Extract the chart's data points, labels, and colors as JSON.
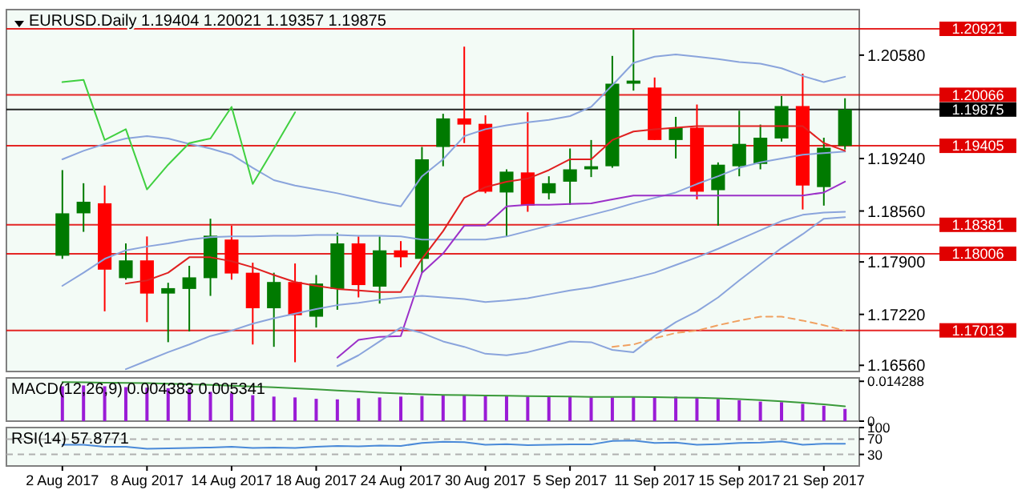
{
  "chart_data": [
    {
      "type": "candlestick",
      "title": "EURUSD.Daily 1.19404 1.20021 1.19357 1.19875",
      "tick_labels": "y",
      "categories": [
        null,
        null,
        null,
        null,
        null,
        null,
        null,
        null,
        null,
        null,
        null,
        null,
        null,
        null,
        null,
        null,
        null,
        null,
        null,
        null,
        null,
        null,
        null,
        null,
        null,
        null,
        null,
        null,
        null,
        null,
        null,
        null,
        null,
        null,
        null,
        null,
        null,
        null
      ],
      "ohlc": [
        [
          1.1798,
          1.1909,
          1.1794,
          1.1853
        ],
        [
          1.1853,
          1.1892,
          1.1829,
          1.1868
        ],
        [
          1.1866,
          1.1889,
          1.1726,
          1.178
        ],
        [
          1.1769,
          1.1814,
          1.1767,
          1.1792
        ],
        [
          1.1792,
          1.1823,
          1.1712,
          1.1749
        ],
        [
          1.1749,
          1.1763,
          1.1686,
          1.1756
        ],
        [
          1.1755,
          1.1785,
          1.17,
          1.177
        ],
        [
          1.1769,
          1.1846,
          1.1746,
          1.1824
        ],
        [
          1.1819,
          1.1837,
          1.1767,
          1.1775
        ],
        [
          1.1776,
          1.1789,
          1.1683,
          1.173
        ],
        [
          1.173,
          1.1776,
          1.168,
          1.1764
        ],
        [
          1.1764,
          1.1788,
          1.166,
          1.1721
        ],
        [
          1.1719,
          1.1773,
          1.1705,
          1.1762
        ],
        [
          1.1755,
          1.1828,
          1.1728,
          1.1814
        ],
        [
          1.1814,
          1.1823,
          1.1744,
          1.176
        ],
        [
          1.1758,
          1.1823,
          1.1736,
          1.1805
        ],
        [
          1.1805,
          1.1817,
          1.1783,
          1.1796
        ],
        [
          1.1794,
          1.1939,
          1.1776,
          1.1923
        ],
        [
          1.1939,
          1.1982,
          1.1914,
          1.1976
        ],
        [
          1.1976,
          1.2069,
          1.1944,
          1.1968
        ],
        [
          1.1969,
          1.198,
          1.1879,
          1.1881
        ],
        [
          1.188,
          1.191,
          1.1823,
          1.1907
        ],
        [
          1.1906,
          1.1984,
          1.1855,
          1.1863
        ],
        [
          1.1879,
          1.1901,
          1.1871,
          1.1892
        ],
        [
          1.1894,
          1.1937,
          1.1864,
          1.191
        ],
        [
          1.191,
          1.1948,
          1.19,
          1.1914
        ],
        [
          1.1914,
          1.2057,
          1.1912,
          1.2021
        ],
        [
          1.2021,
          1.2091,
          1.2012,
          1.2025
        ],
        [
          1.2016,
          1.2029,
          1.1948,
          1.1948
        ],
        [
          1.1948,
          1.1978,
          1.1924,
          1.1964
        ],
        [
          1.1964,
          1.1994,
          1.1871,
          1.1881
        ],
        [
          1.1883,
          1.1919,
          1.1837,
          1.1916
        ],
        [
          1.1914,
          1.1986,
          1.1901,
          1.1943
        ],
        [
          1.1917,
          1.1968,
          1.191,
          1.1951
        ],
        [
          1.195,
          1.2005,
          1.1946,
          1.1992
        ],
        [
          1.1992,
          1.2034,
          1.1858,
          1.1889
        ],
        [
          1.1887,
          1.1951,
          1.1863,
          1.1938
        ],
        [
          1.19404,
          1.20021,
          1.19357,
          1.19875
        ]
      ],
      "colors": [
        "#007a00",
        "#007a00",
        "#ff0000",
        "#007a00",
        "#ff0000",
        "#007a00",
        "#007a00",
        "#007a00",
        "#ff0000",
        "#ff0000",
        "#007a00",
        "#ff0000",
        "#007a00",
        "#007a00",
        "#ff0000",
        "#007a00",
        "#ff0000",
        "#007a00",
        "#007a00",
        "#ff0000",
        "#ff0000",
        "#007a00",
        "#ff0000",
        "#007a00",
        "#007a00",
        "#007a00",
        "#007a00",
        "#007a00",
        "#ff0000",
        "#007a00",
        "#ff0000",
        "#007a00",
        "#007a00",
        "#007a00",
        "#007a00",
        "#ff0000",
        "#007a00",
        "#007a00"
      ],
      "series": [
        {
          "type": "line",
          "color": "#8aa4dc",
          "values": [
            1.1923,
            1.1934,
            1.1943,
            1.195,
            1.1953,
            1.195,
            1.1943,
            1.1937,
            1.1929,
            1.1912,
            1.1896,
            1.1889,
            1.1884,
            1.1879,
            1.1873,
            1.1867,
            1.1862,
            1.1901,
            1.1923,
            1.1953,
            1.1962,
            1.1967,
            1.1971,
            1.1974,
            1.1979,
            1.1991,
            1.2019,
            1.2048,
            1.2056,
            1.2059,
            1.2056,
            1.2053,
            1.2049,
            1.2047,
            1.2041,
            1.2031,
            1.2023,
            1.203
          ]
        },
        {
          "type": "line",
          "color": "#8aa4dc",
          "values": [
            1.1759,
            1.1776,
            1.1794,
            1.1805,
            1.181,
            1.1814,
            1.1819,
            1.1822,
            1.1823,
            1.1823,
            1.1824,
            1.1824,
            1.1825,
            1.1825,
            1.1824,
            1.1824,
            1.1823,
            1.1819,
            1.1819,
            1.1819,
            1.1819,
            1.1823,
            1.183,
            1.1837,
            1.1844,
            1.1851,
            1.1858,
            1.1866,
            1.1873,
            1.188,
            1.1891,
            1.1901,
            1.1912,
            1.1919,
            1.1924,
            1.1929,
            1.1931,
            1.1933
          ]
        },
        {
          "type": "line",
          "color": "#e02020",
          "values": [
            null,
            null,
            null,
            1.1762,
            1.1766,
            1.1776,
            1.1796,
            1.1796,
            1.1791,
            1.1783,
            1.1773,
            1.1764,
            1.1759,
            1.1755,
            1.1753,
            1.1751,
            1.1751,
            1.1794,
            1.183,
            1.1873,
            1.1887,
            1.1894,
            1.1898,
            1.1909,
            1.1923,
            1.1923,
            1.1948,
            1.1959,
            1.1962,
            1.1964,
            1.1966,
            1.1966,
            1.1966,
            1.1966,
            1.1966,
            1.1966,
            1.1944,
            1.1934
          ]
        },
        {
          "type": "line",
          "color": "#9b30c8",
          "values": [
            null,
            null,
            null,
            null,
            null,
            null,
            null,
            null,
            null,
            null,
            null,
            null,
            null,
            1.1666,
            1.1689,
            1.1693,
            1.1694,
            1.1776,
            1.1801,
            1.1837,
            1.1837,
            1.1862,
            1.1864,
            1.1864,
            1.1865,
            1.1866,
            1.1871,
            1.1876,
            1.1876,
            1.1876,
            1.1876,
            1.1876,
            1.1876,
            1.1876,
            1.1876,
            1.1876,
            1.188,
            1.1894
          ]
        },
        {
          "type": "line",
          "color": "#8aa4dc",
          "values": [
            null,
            null,
            null,
            1.1651,
            1.1662,
            1.1673,
            1.1683,
            1.1694,
            1.1701,
            1.171,
            1.1717,
            1.1723,
            1.1729,
            1.1734,
            1.1737,
            1.1741,
            1.1744,
            1.1746,
            1.1744,
            1.1742,
            1.1738,
            1.174,
            1.1743,
            1.1748,
            1.1753,
            1.1757,
            1.1763,
            1.1769,
            1.1776,
            1.1786,
            1.1796,
            1.1807,
            1.1819,
            1.1831,
            1.1843,
            1.1851,
            1.1854,
            1.1855
          ]
        },
        {
          "type": "line",
          "color": "#8aa4dc",
          "values": [
            null,
            null,
            null,
            null,
            null,
            null,
            null,
            null,
            null,
            null,
            null,
            null,
            null,
            1.1655,
            1.1669,
            1.1687,
            1.1705,
            1.1698,
            1.1687,
            1.168,
            1.1671,
            1.1669,
            1.1673,
            1.168,
            1.1687,
            1.1686,
            1.1676,
            1.1673,
            1.1694,
            1.1712,
            1.1726,
            1.1744,
            1.1766,
            1.1787,
            1.1808,
            1.1826,
            1.1846,
            1.1848
          ]
        },
        {
          "type": "line",
          "color": "#40d040",
          "values": [
            1.2023,
            1.2026,
            1.1948,
            1.1962,
            1.1884,
            1.1916,
            1.1944,
            1.195,
            1.1991,
            1.1891,
            1.1937,
            1.1984,
            null,
            null,
            null,
            null,
            null,
            null,
            null,
            null,
            null,
            null,
            null,
            null,
            null,
            null,
            null,
            null,
            null,
            null,
            null,
            null,
            null,
            null,
            null,
            null,
            null,
            null
          ]
        },
        {
          "type": "line",
          "color": "#f0a060",
          "line_style": "dashed",
          "values": [
            null,
            null,
            null,
            null,
            null,
            null,
            null,
            null,
            null,
            null,
            null,
            null,
            null,
            null,
            null,
            null,
            null,
            null,
            null,
            null,
            null,
            null,
            null,
            null,
            null,
            null,
            1.168,
            1.1683,
            1.1691,
            1.1698,
            1.1701,
            1.1708,
            1.1714,
            1.1719,
            1.1719,
            1.1714,
            1.1708,
            1.1701
          ]
        }
      ],
      "ylim": [
        1.1648,
        1.2117
      ],
      "yticks": [
        {
          "value": 1.2058,
          "label": "1.20580"
        },
        {
          "value": 1.1924,
          "label": "1.19240"
        },
        {
          "value": 1.1856,
          "label": "1.18560"
        },
        {
          "value": 1.179,
          "label": "1.17900"
        },
        {
          "value": 1.1722,
          "label": "1.17220"
        },
        {
          "value": 1.1656,
          "label": "1.16560"
        }
      ],
      "ref_lines": [
        {
          "axis": "y",
          "value": 1.20921,
          "label": "1.20921",
          "color": "#e00000"
        },
        {
          "axis": "y",
          "value": 1.20066,
          "label": "1.20066",
          "color": "#e00000"
        },
        {
          "axis": "y",
          "value": 1.19875,
          "label": "1.19875",
          "color": "#000000"
        },
        {
          "axis": "y",
          "value": 1.19405,
          "label": "1.19405",
          "color": "#e00000"
        },
        {
          "axis": "y",
          "value": 1.18381,
          "label": "1.18381",
          "color": "#e00000"
        },
        {
          "axis": "y",
          "value": 1.18006,
          "label": "1.18006",
          "color": "#e00000"
        },
        {
          "axis": "y",
          "value": 1.17013,
          "label": "1.17013",
          "color": "#e00000"
        }
      ]
    },
    {
      "type": "bar",
      "title": "MACD(12,26,9) 0.004383 0.005341",
      "tick_labels": "y",
      "categories": [
        null,
        null,
        null,
        null,
        null,
        null,
        null,
        null,
        null,
        null,
        null,
        null,
        null,
        null,
        null,
        null,
        null,
        null,
        null,
        null,
        null,
        null,
        null,
        null,
        null,
        null,
        null,
        null,
        null,
        null,
        null,
        null,
        null,
        null,
        null,
        null,
        null,
        null
      ],
      "series": [
        {
          "type": "bar",
          "color": "#9a1bd6",
          "values": [
            0.0125,
            0.0128,
            0.0125,
            0.0122,
            0.012,
            0.0118,
            0.0115,
            0.0105,
            0.01,
            0.0093,
            0.0088,
            0.0085,
            0.008,
            0.0078,
            0.0082,
            0.0085,
            0.0088,
            0.009,
            0.0092,
            0.0092,
            0.009,
            0.009,
            0.0088,
            0.0088,
            0.0088,
            0.0085,
            0.0085,
            0.0088,
            0.0088,
            0.0088,
            0.0085,
            0.008,
            0.0075,
            0.007,
            0.0068,
            0.0062,
            0.0055,
            0.004383
          ]
        },
        {
          "type": "line",
          "color": "#3a9a3a",
          "values": [
            0.014,
            0.0139,
            0.0138,
            0.0137,
            0.0136,
            0.0134,
            0.0132,
            0.013,
            0.0127,
            0.0124,
            0.0121,
            0.0118,
            0.0114,
            0.011,
            0.0106,
            0.0102,
            0.0099,
            0.0096,
            0.0094,
            0.0093,
            0.0092,
            0.0091,
            0.009,
            0.0089,
            0.0088,
            0.0087,
            0.0087,
            0.0087,
            0.0086,
            0.0085,
            0.0084,
            0.0082,
            0.0079,
            0.0075,
            0.0071,
            0.0066,
            0.006,
            0.005341
          ]
        }
      ],
      "ylim": [
        0,
        0.0155
      ],
      "yticks": [
        0,
        0.014288
      ]
    },
    {
      "type": "line",
      "title": "RSI(14) 57.8771",
      "categories": [
        "2 Aug 2017",
        null,
        null,
        null,
        "8 Aug 2017",
        null,
        null,
        null,
        "14 Aug 2017",
        null,
        null,
        null,
        "18 Aug 2017",
        null,
        null,
        null,
        "24 Aug 2017",
        null,
        null,
        null,
        "30 Aug 2017",
        null,
        null,
        null,
        "5 Sep 2017",
        null,
        null,
        null,
        "11 Sep 2017",
        null,
        null,
        null,
        "15 Sep 2017",
        null,
        null,
        null,
        "21 Sep 2017",
        null
      ],
      "series": [
        {
          "color": "#4a8ad8",
          "values": [
            55,
            55,
            50,
            50,
            45,
            46,
            47,
            48,
            50,
            47,
            48,
            47,
            50,
            52,
            51,
            53,
            52,
            60,
            63,
            62,
            55,
            57,
            54,
            55,
            56,
            56,
            65,
            66,
            60,
            61,
            55,
            57,
            60,
            61,
            64,
            55,
            58,
            57.8771
          ]
        }
      ],
      "ylim": [
        0,
        100
      ],
      "yticks": [
        100,
        70,
        30
      ],
      "ref_lines": [
        {
          "axis": "y",
          "value": 70,
          "color": "#b0b0b0",
          "line_style": "dashed"
        },
        {
          "axis": "y",
          "value": 30,
          "color": "#b0b0b0",
          "line_style": "dashed"
        }
      ]
    }
  ]
}
